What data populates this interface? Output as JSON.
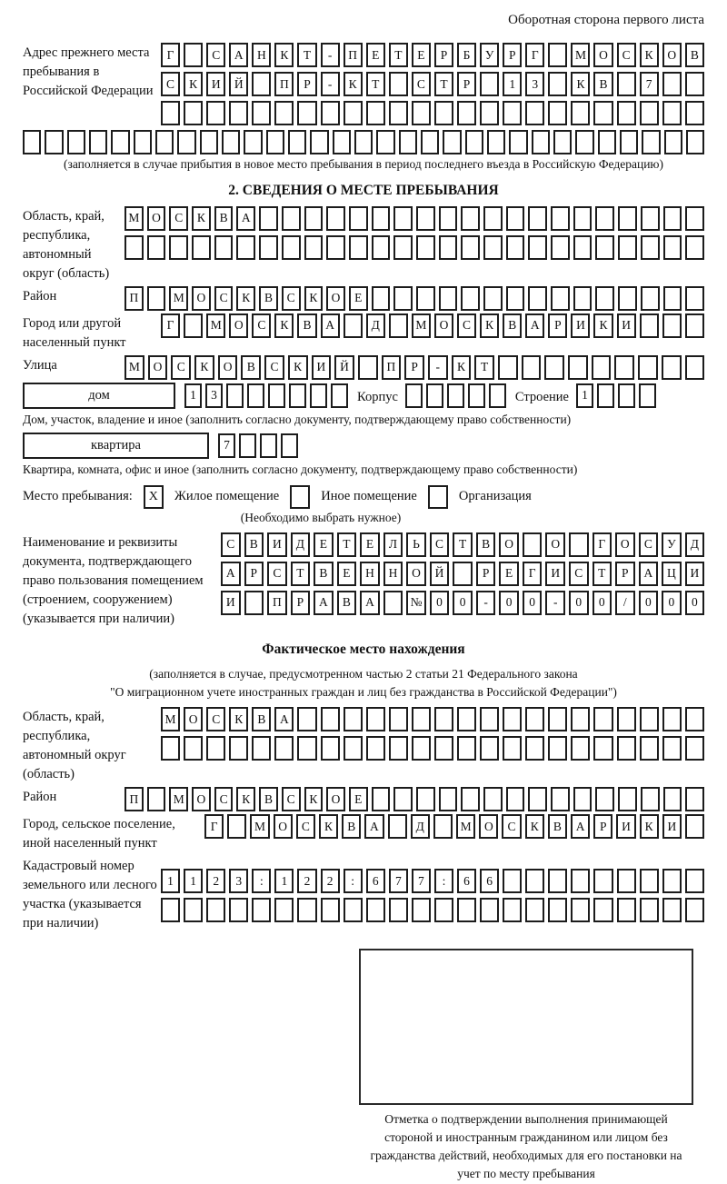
{
  "page": {
    "top_note": "Оборотная сторона первого листа"
  },
  "prev_address": {
    "label": "Адрес прежнего места пребывания в Российской Федерации",
    "rows": [
      {
        "len": 24,
        "text": "Г САНКТ-ПЕТЕРБУРГ МОСКОВ"
      },
      {
        "len": 24,
        "text": "СКИЙ ПР-КТ СТР 13 КВ 7"
      },
      {
        "len": 24,
        "text": ""
      }
    ],
    "full_row": {
      "len": 31,
      "text": ""
    },
    "note": "(заполняется в случае прибытия в новое место пребывания в период последнего въезда в Российскую Федерацию)"
  },
  "section2": {
    "title": "2. СВЕДЕНИЯ О МЕСТЕ ПРЕБЫВАНИЯ",
    "region": {
      "label": "Область, край, республика, автономный округ (область)",
      "rows": [
        {
          "len": 26,
          "text": "МОСКВА"
        },
        {
          "len": 26,
          "text": ""
        }
      ]
    },
    "district": {
      "label": "Район",
      "row": {
        "len": 26,
        "text": "П МОСКВСКОЕ"
      }
    },
    "city": {
      "label": "Город или другой населенный пункт",
      "row": {
        "len": 24,
        "text": "Г МОСКВА Д МОСКВАРИКИ"
      }
    },
    "street": {
      "label": "Улица",
      "row": {
        "len": 25,
        "text": "МОСКОВСКИЙ ПР-КТ"
      }
    },
    "house": {
      "label": "дом",
      "cells": {
        "len": 8,
        "text": "13"
      },
      "korpus_label": "Корпус",
      "korpus_cells": {
        "len": 5,
        "text": ""
      },
      "stroenie_label": "Строение",
      "stroenie_cells": {
        "len": 4,
        "text": "1"
      }
    },
    "house_note": "Дом, участок, владение и иное (заполнить согласно документу, подтверждающему право собственности)",
    "flat": {
      "label": "квартира",
      "cells": {
        "len": 4,
        "text": "7"
      }
    },
    "flat_note": "Квартира, комната, офис и иное (заполнить согласно документу, подтверждающему право собственности)",
    "stay_type": {
      "prefix": "Место пребывания:",
      "options": [
        {
          "label": "Жилое помещение",
          "mark": "X"
        },
        {
          "label": "Иное помещение",
          "mark": ""
        },
        {
          "label": "Организация",
          "mark": ""
        }
      ],
      "note": "(Необходимо выбрать нужное)"
    },
    "doc": {
      "label": "Наименование и реквизиты документа, подтверждающего право пользования помещением (строением, сооружением) (указывается при наличии)",
      "rows": [
        {
          "len": 21,
          "text": "СВИДЕТЕЛЬСТВО О ГОСУД"
        },
        {
          "len": 21,
          "text": "АРСТВЕННОЙ РЕГИСТРАЦИ"
        },
        {
          "len": 21,
          "text": "И ПРАВА №00-00-00/000"
        }
      ]
    }
  },
  "fact": {
    "title": "Фактическое место нахождения",
    "note_line1": "(заполняется в случае, предусмотренном частью 2 статьи 21 Федерального закона",
    "note_line2": "\"О миграционном учете иностранных граждан и лиц без гражданства в Российской Федерации\")",
    "region": {
      "label": "Область, край, республика, автономный округ (область)",
      "rows": [
        {
          "len": 24,
          "text": "МОСКВА"
        },
        {
          "len": 24,
          "text": ""
        }
      ]
    },
    "district": {
      "label": "Район",
      "row": {
        "len": 26,
        "text": "П МОСКВСКОЕ"
      }
    },
    "city": {
      "label": "Город, сельское поселение, иной населенный пункт",
      "row": {
        "len": 22,
        "text": "Г МОСКВА Д МОСКВАРИКИ"
      }
    },
    "cadastre": {
      "label": "Кадастровый номер земельного или лесного участка (указывается при наличии)",
      "rows": [
        {
          "len": 24,
          "text": "1123:122:677:66"
        },
        {
          "len": 24,
          "text": ""
        }
      ]
    }
  },
  "stamp": {
    "caption": "Отметка о подтверждении выполнения принимающей стороной и иностранным гражданином или лицом без гражданства действий, необходимых для его постановки на учет по месту пребывания"
  }
}
